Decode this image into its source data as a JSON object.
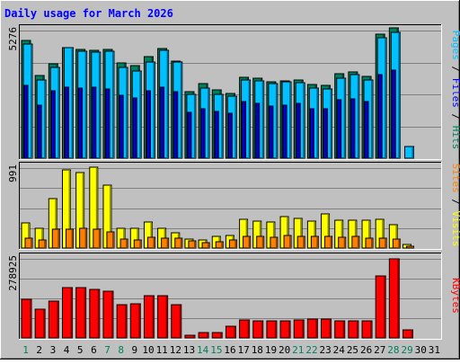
{
  "title": "Daily usage for March 2026",
  "colors": {
    "background": "#c0c0c0",
    "plot_bg": "#c0c0c0",
    "title": "#0000ff",
    "hits": "#00805c",
    "files": "#0000ff",
    "pages": "#00c0ff",
    "visits": "#ffff00",
    "sites": "#ff8000",
    "kbytes": "#ff0000",
    "weekend_day": "#00805c",
    "weekday": "#000000"
  },
  "chart_data": [
    {
      "type": "bar",
      "panel": "hits-files-pages",
      "ymax_label": "5276",
      "ymax": 5276,
      "legend": [
        "Pages",
        "Files",
        "Hits"
      ],
      "categories": [
        "1",
        "2",
        "3",
        "4",
        "5",
        "6",
        "7",
        "8",
        "9",
        "10",
        "11",
        "12",
        "13",
        "14",
        "15",
        "16",
        "17",
        "18",
        "19",
        "20",
        "21",
        "22",
        "23",
        "24",
        "25",
        "26",
        "27",
        "28",
        "29",
        "30",
        "31"
      ],
      "series": [
        {
          "name": "Hits",
          "color": "#00805c",
          "values": [
            4850,
            3420,
            3900,
            4560,
            4480,
            4450,
            4480,
            3940,
            3810,
            4200,
            4530,
            4010,
            2750,
            3090,
            2810,
            2680,
            3350,
            3310,
            3140,
            3200,
            3250,
            3030,
            3010,
            3480,
            3560,
            3380,
            5130,
            5400,
            0,
            0,
            0
          ]
        },
        {
          "name": "Files",
          "color": "#0000ff",
          "values": [
            3000,
            2200,
            2800,
            2950,
            2900,
            2950,
            2850,
            2600,
            2500,
            2800,
            2950,
            2750,
            1900,
            2050,
            1950,
            1850,
            2350,
            2250,
            2150,
            2200,
            2250,
            2050,
            2050,
            2400,
            2450,
            2350,
            3450,
            3650,
            0,
            0,
            0
          ]
        },
        {
          "name": "Pages",
          "color": "#00c0ff",
          "values": [
            4730,
            3220,
            3740,
            4580,
            4430,
            4400,
            4410,
            3750,
            3610,
            3960,
            4460,
            3960,
            2640,
            2880,
            2650,
            2580,
            3220,
            3200,
            3080,
            3140,
            3130,
            2880,
            2870,
            3300,
            3460,
            3250,
            4980,
            5220,
            490,
            0,
            0
          ]
        }
      ]
    },
    {
      "type": "bar",
      "panel": "visits-sites",
      "ymax_label": "991",
      "ymax": 991,
      "legend": [
        "Sites",
        "Visits"
      ],
      "categories": [
        "1",
        "2",
        "3",
        "4",
        "5",
        "6",
        "7",
        "8",
        "9",
        "10",
        "11",
        "12",
        "13",
        "14",
        "15",
        "16",
        "17",
        "18",
        "19",
        "20",
        "21",
        "22",
        "23",
        "24",
        "25",
        "26",
        "27",
        "28",
        "29",
        "30",
        "31"
      ],
      "series": [
        {
          "name": "Visits",
          "color": "#ffff00",
          "values": [
            310,
            250,
            610,
            970,
            940,
            1000,
            780,
            240,
            250,
            320,
            250,
            190,
            110,
            100,
            150,
            160,
            360,
            330,
            320,
            390,
            370,
            330,
            420,
            340,
            340,
            350,
            360,
            290,
            40,
            0,
            0
          ]
        },
        {
          "name": "Sites",
          "color": "#ff8000",
          "values": [
            120,
            100,
            230,
            230,
            240,
            230,
            200,
            110,
            100,
            130,
            120,
            120,
            90,
            70,
            80,
            100,
            140,
            140,
            130,
            160,
            150,
            140,
            150,
            130,
            140,
            120,
            120,
            110,
            20,
            0,
            0
          ]
        }
      ]
    },
    {
      "type": "bar",
      "panel": "kbytes",
      "ymax_label": "278925",
      "ymax": 278925,
      "legend": [
        "KBytes"
      ],
      "categories": [
        "1",
        "2",
        "3",
        "4",
        "5",
        "6",
        "7",
        "8",
        "9",
        "10",
        "11",
        "12",
        "13",
        "14",
        "15",
        "16",
        "17",
        "18",
        "19",
        "20",
        "21",
        "22",
        "23",
        "24",
        "25",
        "26",
        "27",
        "28",
        "29",
        "30",
        "31"
      ],
      "series": [
        {
          "name": "KBytes",
          "color": "#ff0000",
          "values": [
            136000,
            100000,
            130000,
            178000,
            179000,
            171000,
            164000,
            118000,
            122000,
            148000,
            148000,
            118000,
            10000,
            20000,
            20000,
            40000,
            62000,
            60000,
            60000,
            60000,
            63000,
            66000,
            67000,
            60000,
            61000,
            61000,
            219000,
            278000,
            30000,
            0,
            0
          ]
        }
      ]
    }
  ],
  "x_labels": [
    {
      "label": "1",
      "weekend": true
    },
    {
      "label": "2",
      "weekend": false
    },
    {
      "label": "3",
      "weekend": false
    },
    {
      "label": "4",
      "weekend": false
    },
    {
      "label": "5",
      "weekend": false
    },
    {
      "label": "6",
      "weekend": false
    },
    {
      "label": "7",
      "weekend": true
    },
    {
      "label": "8",
      "weekend": true
    },
    {
      "label": "9",
      "weekend": false
    },
    {
      "label": "10",
      "weekend": false
    },
    {
      "label": "11",
      "weekend": false
    },
    {
      "label": "12",
      "weekend": false
    },
    {
      "label": "13",
      "weekend": false
    },
    {
      "label": "14",
      "weekend": true
    },
    {
      "label": "15",
      "weekend": true
    },
    {
      "label": "16",
      "weekend": false
    },
    {
      "label": "17",
      "weekend": false
    },
    {
      "label": "18",
      "weekend": false
    },
    {
      "label": "19",
      "weekend": false
    },
    {
      "label": "20",
      "weekend": false
    },
    {
      "label": "21",
      "weekend": true
    },
    {
      "label": "22",
      "weekend": true
    },
    {
      "label": "23",
      "weekend": false
    },
    {
      "label": "24",
      "weekend": false
    },
    {
      "label": "25",
      "weekend": false
    },
    {
      "label": "26",
      "weekend": false
    },
    {
      "label": "27",
      "weekend": false
    },
    {
      "label": "28",
      "weekend": true
    },
    {
      "label": "29",
      "weekend": true
    },
    {
      "label": "30",
      "weekend": false
    },
    {
      "label": "31",
      "weekend": false
    }
  ]
}
